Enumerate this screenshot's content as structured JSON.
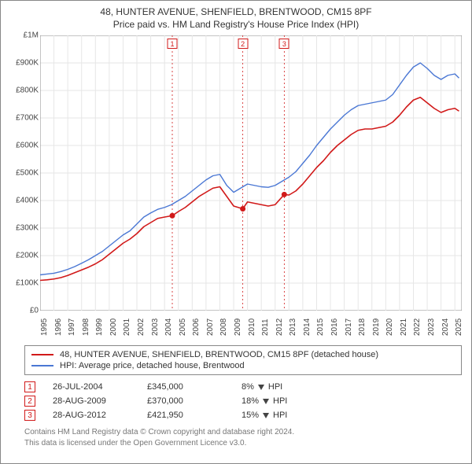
{
  "title": {
    "address": "48, HUNTER AVENUE, SHENFIELD, BRENTWOOD, CM15 8PF",
    "subtitle": "Price paid vs. HM Land Registry's House Price Index (HPI)"
  },
  "chart": {
    "type": "line",
    "background_color": "#ffffff",
    "grid_color": "#e6e6e6",
    "axis_color": "#888888",
    "y": {
      "min": 0,
      "max": 1000000,
      "ticks": [
        {
          "v": 0,
          "label": "£0"
        },
        {
          "v": 100000,
          "label": "£100K"
        },
        {
          "v": 200000,
          "label": "£200K"
        },
        {
          "v": 300000,
          "label": "£300K"
        },
        {
          "v": 400000,
          "label": "£400K"
        },
        {
          "v": 500000,
          "label": "£500K"
        },
        {
          "v": 600000,
          "label": "£600K"
        },
        {
          "v": 700000,
          "label": "£700K"
        },
        {
          "v": 800000,
          "label": "£800K"
        },
        {
          "v": 900000,
          "label": "£900K"
        },
        {
          "v": 1000000,
          "label": "£1M"
        }
      ]
    },
    "x": {
      "min": 1995,
      "max": 2025.5,
      "ticks": [
        1995,
        1996,
        1997,
        1998,
        1999,
        2000,
        2001,
        2002,
        2003,
        2004,
        2005,
        2006,
        2007,
        2008,
        2009,
        2010,
        2011,
        2012,
        2013,
        2014,
        2015,
        2016,
        2017,
        2018,
        2019,
        2020,
        2021,
        2022,
        2023,
        2024,
        2025
      ]
    },
    "series": [
      {
        "id": "property",
        "label": "48, HUNTER AVENUE, SHENFIELD, BRENTWOOD, CM15 8PF (detached house)",
        "color": "#d11919",
        "width": 1.6,
        "points": [
          [
            1995.0,
            110000
          ],
          [
            1995.5,
            112000
          ],
          [
            1996.0,
            115000
          ],
          [
            1996.5,
            120000
          ],
          [
            1997.0,
            128000
          ],
          [
            1997.5,
            138000
          ],
          [
            1998.0,
            148000
          ],
          [
            1998.5,
            158000
          ],
          [
            1999.0,
            170000
          ],
          [
            1999.5,
            185000
          ],
          [
            2000.0,
            205000
          ],
          [
            2000.5,
            225000
          ],
          [
            2001.0,
            245000
          ],
          [
            2001.5,
            260000
          ],
          [
            2002.0,
            280000
          ],
          [
            2002.5,
            305000
          ],
          [
            2003.0,
            320000
          ],
          [
            2003.5,
            335000
          ],
          [
            2004.0,
            340000
          ],
          [
            2004.56,
            345000
          ],
          [
            2005.0,
            360000
          ],
          [
            2005.5,
            375000
          ],
          [
            2006.0,
            395000
          ],
          [
            2006.5,
            415000
          ],
          [
            2007.0,
            430000
          ],
          [
            2007.5,
            445000
          ],
          [
            2008.0,
            450000
          ],
          [
            2008.5,
            415000
          ],
          [
            2009.0,
            380000
          ],
          [
            2009.66,
            370000
          ],
          [
            2010.0,
            395000
          ],
          [
            2010.5,
            390000
          ],
          [
            2011.0,
            385000
          ],
          [
            2011.5,
            380000
          ],
          [
            2012.0,
            385000
          ],
          [
            2012.66,
            421950
          ],
          [
            2013.0,
            420000
          ],
          [
            2013.5,
            435000
          ],
          [
            2014.0,
            460000
          ],
          [
            2014.5,
            490000
          ],
          [
            2015.0,
            520000
          ],
          [
            2015.5,
            545000
          ],
          [
            2016.0,
            575000
          ],
          [
            2016.5,
            600000
          ],
          [
            2017.0,
            620000
          ],
          [
            2017.5,
            640000
          ],
          [
            2018.0,
            655000
          ],
          [
            2018.5,
            660000
          ],
          [
            2019.0,
            660000
          ],
          [
            2019.5,
            665000
          ],
          [
            2020.0,
            670000
          ],
          [
            2020.5,
            685000
          ],
          [
            2021.0,
            710000
          ],
          [
            2021.5,
            740000
          ],
          [
            2022.0,
            765000
          ],
          [
            2022.5,
            775000
          ],
          [
            2023.0,
            755000
          ],
          [
            2023.5,
            735000
          ],
          [
            2024.0,
            720000
          ],
          [
            2024.5,
            730000
          ],
          [
            2025.0,
            735000
          ],
          [
            2025.3,
            725000
          ]
        ]
      },
      {
        "id": "hpi",
        "label": "HPI: Average price, detached house, Brentwood",
        "color": "#4a77d4",
        "width": 1.4,
        "points": [
          [
            1995.0,
            130000
          ],
          [
            1995.5,
            133000
          ],
          [
            1996.0,
            136000
          ],
          [
            1996.5,
            142000
          ],
          [
            1997.0,
            150000
          ],
          [
            1997.5,
            160000
          ],
          [
            1998.0,
            172000
          ],
          [
            1998.5,
            185000
          ],
          [
            1999.0,
            200000
          ],
          [
            1999.5,
            215000
          ],
          [
            2000.0,
            235000
          ],
          [
            2000.5,
            255000
          ],
          [
            2001.0,
            275000
          ],
          [
            2001.5,
            290000
          ],
          [
            2002.0,
            315000
          ],
          [
            2002.5,
            340000
          ],
          [
            2003.0,
            355000
          ],
          [
            2003.5,
            368000
          ],
          [
            2004.0,
            375000
          ],
          [
            2004.5,
            385000
          ],
          [
            2005.0,
            400000
          ],
          [
            2005.5,
            415000
          ],
          [
            2006.0,
            435000
          ],
          [
            2006.5,
            455000
          ],
          [
            2007.0,
            475000
          ],
          [
            2007.5,
            490000
          ],
          [
            2008.0,
            495000
          ],
          [
            2008.5,
            455000
          ],
          [
            2009.0,
            430000
          ],
          [
            2009.5,
            445000
          ],
          [
            2010.0,
            460000
          ],
          [
            2010.5,
            455000
          ],
          [
            2011.0,
            450000
          ],
          [
            2011.5,
            448000
          ],
          [
            2012.0,
            455000
          ],
          [
            2012.5,
            470000
          ],
          [
            2013.0,
            485000
          ],
          [
            2013.5,
            505000
          ],
          [
            2014.0,
            535000
          ],
          [
            2014.5,
            565000
          ],
          [
            2015.0,
            600000
          ],
          [
            2015.5,
            630000
          ],
          [
            2016.0,
            660000
          ],
          [
            2016.5,
            685000
          ],
          [
            2017.0,
            710000
          ],
          [
            2017.5,
            730000
          ],
          [
            2018.0,
            745000
          ],
          [
            2018.5,
            750000
          ],
          [
            2019.0,
            755000
          ],
          [
            2019.5,
            760000
          ],
          [
            2020.0,
            765000
          ],
          [
            2020.5,
            785000
          ],
          [
            2021.0,
            820000
          ],
          [
            2021.5,
            855000
          ],
          [
            2022.0,
            885000
          ],
          [
            2022.5,
            900000
          ],
          [
            2023.0,
            880000
          ],
          [
            2023.5,
            855000
          ],
          [
            2024.0,
            840000
          ],
          [
            2024.5,
            855000
          ],
          [
            2025.0,
            860000
          ],
          [
            2025.3,
            845000
          ]
        ]
      }
    ],
    "event_markers": [
      {
        "n": "1",
        "x": 2004.56,
        "y": 345000
      },
      {
        "n": "2",
        "x": 2009.66,
        "y": 370000
      },
      {
        "n": "3",
        "x": 2012.66,
        "y": 421950
      }
    ],
    "event_line_color": "#d11919",
    "event_dot_color": "#d11919",
    "badge_top_y": 990000
  },
  "legend": {
    "items": [
      {
        "color": "#d11919",
        "text": "48, HUNTER AVENUE, SHENFIELD, BRENTWOOD, CM15 8PF (detached house)"
      },
      {
        "color": "#4a77d4",
        "text": "HPI: Average price, detached house, Brentwood"
      }
    ]
  },
  "events": [
    {
      "n": "1",
      "date": "26-JUL-2004",
      "price": "£345,000",
      "diff": "8%",
      "rel": "HPI"
    },
    {
      "n": "2",
      "date": "28-AUG-2009",
      "price": "£370,000",
      "diff": "18%",
      "rel": "HPI"
    },
    {
      "n": "3",
      "date": "28-AUG-2012",
      "price": "£421,950",
      "diff": "15%",
      "rel": "HPI"
    }
  ],
  "footer": {
    "line1": "Contains HM Land Registry data © Crown copyright and database right 2024.",
    "line2": "This data is licensed under the Open Government Licence v3.0."
  }
}
